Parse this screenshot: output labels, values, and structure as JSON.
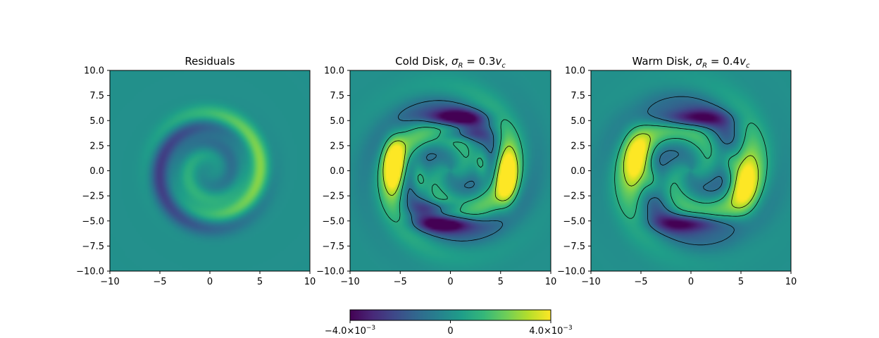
{
  "chart_data": [
    {
      "type": "heatmap",
      "title": "Residuals",
      "xlim": [
        -10,
        10
      ],
      "ylim": [
        -10,
        10
      ],
      "xticks": [
        "−10",
        "−5",
        "0",
        "5",
        "10"
      ],
      "yticks": [
        "10.0",
        "7.5",
        "5.0",
        "2.5",
        "0.0",
        "−2.5",
        "−5.0",
        "−7.5",
        "−10.0"
      ],
      "xlabel": "",
      "ylabel": "",
      "colormap": "viridis",
      "contours": false,
      "pattern": "faint one-armed trailing spiral, ring near r = 5"
    },
    {
      "type": "heatmap",
      "title": "Cold Disk, σ_R = 0.3v_c",
      "title_parts": {
        "prefix": "Cold Disk, ",
        "sym": "σ",
        "sub": "R",
        "mid": " = 0.3",
        "v": "v",
        "vsub": "c"
      },
      "xlim": [
        -10,
        10
      ],
      "ylim": [
        -10,
        10
      ],
      "xticks": [
        "−10",
        "−5",
        "0",
        "5",
        "10"
      ],
      "yticks": [
        "10.0",
        "7.5",
        "5.0",
        "2.5",
        "0.0",
        "−2.5",
        "−5.0",
        "−7.5",
        "−10.0"
      ],
      "xlabel": "",
      "ylabel": "",
      "colormap": "viridis",
      "contours": true,
      "pattern": "two-armed spiral, positive lobes near x = ±5.5, negative lobes near y = ±5.3"
    },
    {
      "type": "heatmap",
      "title": "Warm Disk, σ_R = 0.4v_c",
      "title_parts": {
        "prefix": "Warm Disk, ",
        "sym": "σ",
        "sub": "R",
        "mid": " = 0.4",
        "v": "v",
        "vsub": "c"
      },
      "xlim": [
        -10,
        10
      ],
      "ylim": [
        -10,
        10
      ],
      "xticks": [
        "−10",
        "−5",
        "0",
        "5",
        "10"
      ],
      "yticks": [
        "10.0",
        "7.5",
        "5.0",
        "2.5",
        "0.0",
        "−2.5",
        "−5.0",
        "−7.5",
        "−10.0"
      ],
      "xlabel": "",
      "ylabel": "",
      "colormap": "viridis",
      "contours": true,
      "pattern": "two-armed spiral, broader positive lobes near x = ±5, negative lobes near y = ±5"
    }
  ],
  "colorbar": {
    "min": -0.004,
    "max": 0.004,
    "ticks": [
      {
        "value": -0.004,
        "mant": "−4.0",
        "exp": "−3"
      },
      {
        "value": 0,
        "mant": "0",
        "exp": ""
      },
      {
        "value": 0.004,
        "mant": "4.0",
        "exp": "−3"
      }
    ],
    "colormap": "viridis"
  },
  "colors": {
    "viridis": [
      "#440154",
      "#482878",
      "#3e4989",
      "#31688e",
      "#26828e",
      "#1f9e89",
      "#35b779",
      "#6ece58",
      "#b5de2b",
      "#fde725"
    ],
    "contour": "#000000"
  }
}
